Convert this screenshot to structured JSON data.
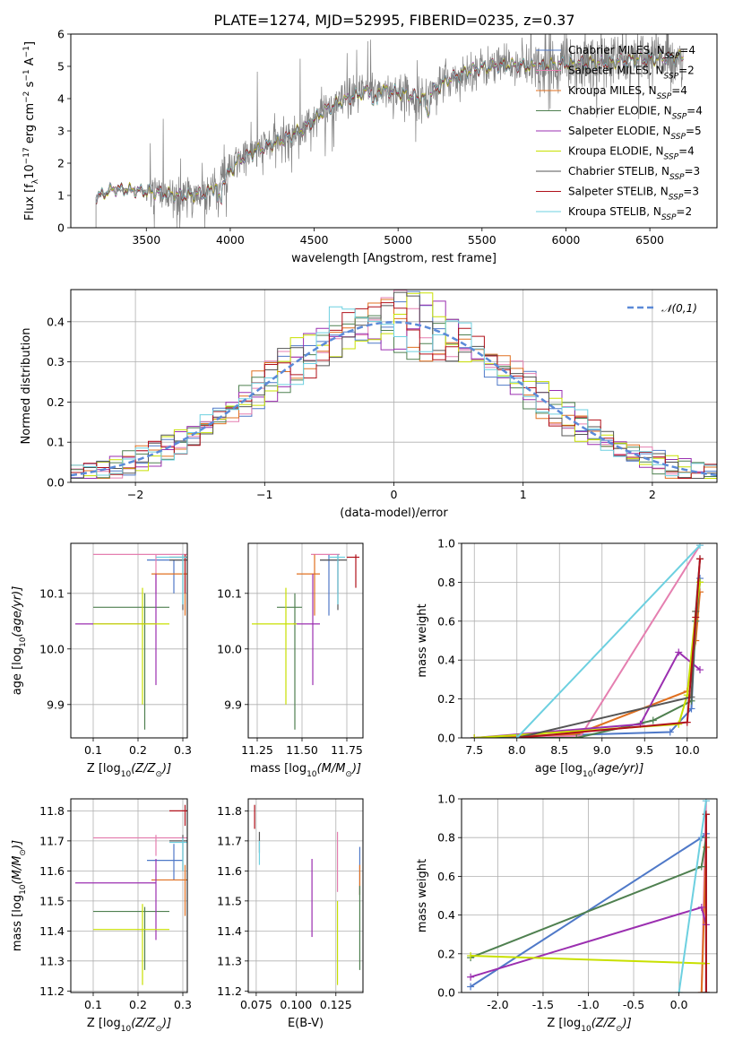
{
  "figure": {
    "title": "PLATE=1274, MJD=52995, FIBERID=0235, z=0.37"
  },
  "models": [
    {
      "name": "Chabrier MILES",
      "nssp": "4",
      "color": "#4f79c8"
    },
    {
      "name": "Salpeter MILES",
      "nssp": "2",
      "color": "#e57fb0"
    },
    {
      "name": "Kroupa MILES",
      "nssp": "4",
      "color": "#e07020"
    },
    {
      "name": "Chabrier ELODIE",
      "nssp": "4",
      "color": "#4f8050"
    },
    {
      "name": "Salpeter ELODIE",
      "nssp": "5",
      "color": "#9b2fb0"
    },
    {
      "name": "Kroupa ELODIE",
      "nssp": "4",
      "color": "#c8e000"
    },
    {
      "name": "Chabrier STELIB",
      "nssp": "3",
      "color": "#555555"
    },
    {
      "name": "Salpeter STELIB",
      "nssp": "3",
      "color": "#b0101a"
    },
    {
      "name": "Kroupa STELIB",
      "nssp": "2",
      "color": "#6dd0e0"
    }
  ],
  "chart_data": [
    {
      "id": "spectrum",
      "type": "line",
      "xlabel": "wavelength [Angstrom, rest frame]",
      "ylabel": "Flux [f_λ 10^-17 erg cm^-2 s^-1 A^-1]",
      "xlim": [
        3050,
        6900
      ],
      "ylim": [
        0,
        6
      ],
      "xticks": [
        3500,
        4000,
        4500,
        5000,
        5500,
        6000,
        6500
      ],
      "yticks": [
        0,
        1,
        2,
        3,
        4,
        5,
        6
      ],
      "legend_placement": "upper-right",
      "continuum": [
        [
          3200,
          0.95
        ],
        [
          3300,
          1.2
        ],
        [
          3450,
          1.15
        ],
        [
          3550,
          1.1
        ],
        [
          3700,
          1.0
        ],
        [
          3850,
          1.05
        ],
        [
          3950,
          1.4
        ],
        [
          4050,
          2.1
        ],
        [
          4200,
          2.5
        ],
        [
          4300,
          2.7
        ],
        [
          4450,
          3.1
        ],
        [
          4550,
          3.6
        ],
        [
          4700,
          4.0
        ],
        [
          4850,
          4.3
        ],
        [
          5000,
          4.2
        ],
        [
          5150,
          4.0
        ],
        [
          5300,
          4.6
        ],
        [
          5450,
          4.9
        ],
        [
          5550,
          5.0
        ],
        [
          5700,
          5.05
        ],
        [
          5850,
          5.0
        ],
        [
          6000,
          5.1
        ],
        [
          6200,
          5.1
        ],
        [
          6400,
          5.2
        ],
        [
          6700,
          5.3
        ]
      ]
    },
    {
      "id": "residuals",
      "type": "line",
      "xlabel": "(data-model)/error",
      "ylabel": "Normed distribution",
      "xlim": [
        -2.5,
        2.5
      ],
      "ylim": [
        0,
        0.48
      ],
      "xticks": [
        -2,
        -1,
        0,
        1,
        2
      ],
      "yticks": [
        0.0,
        0.1,
        0.2,
        0.3,
        0.4
      ],
      "grid": true,
      "legend": "𝒩(0,1)",
      "legend_placement": "upper-right",
      "gaussian": {
        "mu": 0,
        "sigma": 1,
        "color": "#5b8ad8"
      },
      "bin_width": 0.1
    },
    {
      "id": "age-vs-Z",
      "type": "scatter",
      "xlabel": "Z [log10(Z/Z⊙)]",
      "ylabel": "age [log10(age/yr)]",
      "xlim": [
        0.05,
        0.31
      ],
      "ylim": [
        9.84,
        10.19
      ],
      "xticks": [
        0.1,
        0.2,
        0.3
      ],
      "yticks": [
        9.9,
        10.0,
        10.1
      ],
      "grid": true,
      "points": [
        {
          "model": "Chabrier MILES",
          "x": 0.28,
          "y": 10.16,
          "xerr": [
            0.22,
            0.3
          ],
          "yerr": [
            10.1,
            10.16
          ]
        },
        {
          "model": "Salpeter MILES",
          "x": 0.24,
          "y": 10.17,
          "xerr": [
            0.1,
            0.31
          ],
          "yerr": [
            10.1,
            10.17
          ]
        },
        {
          "model": "Kroupa MILES",
          "x": 0.305,
          "y": 10.135,
          "xerr": [
            0.23,
            0.31
          ],
          "yerr": [
            10.06,
            10.17
          ]
        },
        {
          "model": "Chabrier ELODIE",
          "x": 0.215,
          "y": 10.075,
          "xerr": [
            0.1,
            0.27
          ],
          "yerr": [
            9.855,
            10.1
          ]
        },
        {
          "model": "Salpeter ELODIE",
          "x": 0.24,
          "y": 10.045,
          "xerr": [
            0.06,
            0.24
          ],
          "yerr": [
            9.935,
            10.135
          ]
        },
        {
          "model": "Kroupa ELODIE",
          "x": 0.21,
          "y": 10.045,
          "xerr": [
            0.1,
            0.27
          ],
          "yerr": [
            9.9,
            10.11
          ]
        },
        {
          "model": "Chabrier STELIB",
          "x": 0.3,
          "y": 10.16,
          "xerr": [
            0.27,
            0.31
          ],
          "yerr": [
            10.07,
            10.17
          ]
        },
        {
          "model": "Salpeter STELIB",
          "x": 0.305,
          "y": 10.165,
          "xerr": [
            0.27,
            0.31
          ],
          "yerr": [
            10.1,
            10.17
          ]
        },
        {
          "model": "Kroupa STELIB",
          "x": 0.3,
          "y": 10.165,
          "xerr": [
            0.24,
            0.31
          ],
          "yerr": [
            10.08,
            10.17
          ]
        }
      ]
    },
    {
      "id": "age-vs-mass",
      "type": "scatter",
      "xlabel": "mass [log10(M/M⊙)]",
      "ylabel": "",
      "xlim": [
        11.2,
        11.84
      ],
      "ylim": [
        9.84,
        10.19
      ],
      "xticks": [
        11.25,
        11.5,
        11.75
      ],
      "yticks": [
        9.9,
        10.0,
        10.1
      ],
      "grid": true,
      "points": [
        {
          "model": "Chabrier MILES",
          "x": 11.65,
          "y": 10.16,
          "xerr": [
            11.6,
            11.71
          ],
          "yerr": [
            10.06,
            10.17
          ]
        },
        {
          "model": "Salpeter MILES",
          "x": 11.7,
          "y": 10.17,
          "xerr": [
            11.55,
            11.71
          ],
          "yerr": [
            10.1,
            10.17
          ]
        },
        {
          "model": "Kroupa MILES",
          "x": 11.57,
          "y": 10.135,
          "xerr": [
            11.47,
            11.6
          ],
          "yerr": [
            10.06,
            10.17
          ]
        },
        {
          "model": "Chabrier ELODIE",
          "x": 11.46,
          "y": 10.075,
          "xerr": [
            11.36,
            11.5
          ],
          "yerr": [
            9.855,
            10.1
          ]
        },
        {
          "model": "Salpeter ELODIE",
          "x": 11.56,
          "y": 10.045,
          "xerr": [
            11.45,
            11.6
          ],
          "yerr": [
            9.935,
            10.135
          ]
        },
        {
          "model": "Kroupa ELODIE",
          "x": 11.41,
          "y": 10.045,
          "xerr": [
            11.22,
            11.47
          ],
          "yerr": [
            9.9,
            10.11
          ]
        },
        {
          "model": "Chabrier STELIB",
          "x": 11.7,
          "y": 10.16,
          "xerr": [
            11.6,
            11.75
          ],
          "yerr": [
            10.07,
            10.17
          ]
        },
        {
          "model": "Salpeter STELIB",
          "x": 11.8,
          "y": 10.165,
          "xerr": [
            11.75,
            11.82
          ],
          "yerr": [
            10.11,
            10.17
          ]
        },
        {
          "model": "Kroupa STELIB",
          "x": 11.7,
          "y": 10.165,
          "xerr": [
            11.65,
            11.74
          ],
          "yerr": [
            10.08,
            10.17
          ]
        }
      ]
    },
    {
      "id": "weight-vs-age",
      "type": "line",
      "xlabel": "age [log10(age/yr)]",
      "ylabel": "mass weight",
      "xlim": [
        7.35,
        10.35
      ],
      "ylim": [
        0,
        1
      ],
      "xticks": [
        7.5,
        8.0,
        8.5,
        9.0,
        9.5,
        10.0
      ],
      "yticks": [
        0.0,
        0.2,
        0.4,
        0.6,
        0.8,
        1.0
      ],
      "grid": true,
      "series": [
        {
          "model": "Chabrier MILES",
          "x": [
            7.5,
            9.8,
            10.05,
            10.1,
            10.15
          ],
          "y": [
            0.0,
            0.03,
            0.15,
            0.6,
            0.82
          ]
        },
        {
          "model": "Salpeter MILES",
          "x": [
            7.5,
            8.75,
            10.15
          ],
          "y": [
            0.0,
            0.01,
            0.99
          ]
        },
        {
          "model": "Kroupa MILES",
          "x": [
            7.5,
            8.7,
            10.0,
            10.1,
            10.15
          ],
          "y": [
            0.0,
            0.02,
            0.24,
            0.5,
            0.75
          ]
        },
        {
          "model": "Chabrier ELODIE",
          "x": [
            7.5,
            8.7,
            9.6,
            10.05,
            10.1,
            10.15
          ],
          "y": [
            0.0,
            0.0,
            0.09,
            0.19,
            0.6,
            0.8
          ]
        },
        {
          "model": "Salpeter ELODIE",
          "x": [
            7.5,
            9.45,
            9.9,
            10.15
          ],
          "y": [
            0.0,
            0.07,
            0.44,
            0.35
          ]
        },
        {
          "model": "Kroupa ELODIE",
          "x": [
            7.5,
            9.9,
            10.0,
            10.1,
            10.15
          ],
          "y": [
            0.0,
            0.07,
            0.22,
            0.65,
            0.8
          ]
        },
        {
          "model": "Chabrier STELIB",
          "x": [
            8.0,
            10.05,
            10.1,
            10.15
          ],
          "y": [
            0.0,
            0.21,
            0.65,
            0.92
          ]
        },
        {
          "model": "Salpeter STELIB",
          "x": [
            8.0,
            10.0,
            10.1,
            10.15
          ],
          "y": [
            0.0,
            0.08,
            0.62,
            0.92
          ]
        },
        {
          "model": "Kroupa STELIB",
          "x": [
            8.0,
            10.15
          ],
          "y": [
            0.0,
            0.99
          ]
        }
      ]
    },
    {
      "id": "mass-vs-Z",
      "type": "scatter",
      "xlabel": "Z [log10(Z/Z⊙)]",
      "ylabel": "mass [log10(M/M⊙)]",
      "xlim": [
        0.05,
        0.31
      ],
      "ylim": [
        11.195,
        11.84
      ],
      "xticks": [
        0.1,
        0.2,
        0.3
      ],
      "yticks": [
        11.2,
        11.3,
        11.4,
        11.5,
        11.6,
        11.7,
        11.8
      ],
      "grid": true,
      "points": [
        {
          "model": "Chabrier MILES",
          "x": 0.28,
          "y": 11.635,
          "xerr": [
            0.22,
            0.3
          ],
          "yerr": [
            11.57,
            11.69
          ]
        },
        {
          "model": "Salpeter MILES",
          "x": 0.24,
          "y": 11.71,
          "xerr": [
            0.1,
            0.31
          ],
          "yerr": [
            11.65,
            11.72
          ]
        },
        {
          "model": "Kroupa MILES",
          "x": 0.305,
          "y": 11.57,
          "xerr": [
            0.23,
            0.31
          ],
          "yerr": [
            11.45,
            11.62
          ]
        },
        {
          "model": "Chabrier ELODIE",
          "x": 0.215,
          "y": 11.465,
          "xerr": [
            0.1,
            0.27
          ],
          "yerr": [
            11.27,
            11.48
          ]
        },
        {
          "model": "Salpeter ELODIE",
          "x": 0.24,
          "y": 11.56,
          "xerr": [
            0.06,
            0.24
          ],
          "yerr": [
            11.37,
            11.64
          ]
        },
        {
          "model": "Kroupa ELODIE",
          "x": 0.21,
          "y": 11.405,
          "xerr": [
            0.1,
            0.27
          ],
          "yerr": [
            11.22,
            11.49
          ]
        },
        {
          "model": "Chabrier STELIB",
          "x": 0.3,
          "y": 11.7,
          "xerr": [
            0.27,
            0.31
          ],
          "yerr": [
            11.6,
            11.72
          ]
        },
        {
          "model": "Salpeter STELIB",
          "x": 0.305,
          "y": 11.8,
          "xerr": [
            0.27,
            0.31
          ],
          "yerr": [
            11.75,
            11.82
          ]
        },
        {
          "model": "Kroupa STELIB",
          "x": 0.3,
          "y": 11.695,
          "xerr": [
            0.27,
            0.31
          ],
          "yerr": [
            11.6,
            11.71
          ]
        }
      ]
    },
    {
      "id": "mass-vs-ebv",
      "type": "scatter",
      "xlabel": "E(B-V)",
      "ylabel": "",
      "xlim": [
        0.07,
        0.142
      ],
      "ylim": [
        11.195,
        11.84
      ],
      "xticks": [
        0.075,
        0.1,
        0.125
      ],
      "yticks": [
        11.2,
        11.3,
        11.4,
        11.5,
        11.6,
        11.7,
        11.8
      ],
      "grid": true,
      "points": [
        {
          "model": "Chabrier MILES",
          "x": 0.14,
          "y": 11.6,
          "xerr": [
            0.14,
            0.14
          ],
          "yerr": [
            11.52,
            11.68
          ]
        },
        {
          "model": "Salpeter MILES",
          "x": 0.126,
          "y": 11.63,
          "xerr": [
            0.126,
            0.126
          ],
          "yerr": [
            11.53,
            11.73
          ]
        },
        {
          "model": "Kroupa MILES",
          "x": 0.14,
          "y": 11.58,
          "xerr": [
            0.14,
            0.14
          ],
          "yerr": [
            11.52,
            11.62
          ]
        },
        {
          "model": "Chabrier ELODIE",
          "x": 0.14,
          "y": 11.41,
          "xerr": [
            0.14,
            0.14
          ],
          "yerr": [
            11.27,
            11.55
          ]
        },
        {
          "model": "Salpeter ELODIE",
          "x": 0.11,
          "y": 11.51,
          "xerr": [
            0.11,
            0.11
          ],
          "yerr": [
            11.38,
            11.64
          ]
        },
        {
          "model": "Kroupa ELODIE",
          "x": 0.126,
          "y": 11.36,
          "xerr": [
            0.126,
            0.126
          ],
          "yerr": [
            11.22,
            11.5
          ]
        },
        {
          "model": "Chabrier STELIB",
          "x": 0.077,
          "y": 11.7,
          "xerr": [
            0.077,
            0.077
          ],
          "yerr": [
            11.66,
            11.73
          ]
        },
        {
          "model": "Salpeter STELIB",
          "x": 0.074,
          "y": 11.78,
          "xerr": [
            0.074,
            0.074
          ],
          "yerr": [
            11.74,
            11.82
          ]
        },
        {
          "model": "Kroupa STELIB",
          "x": 0.077,
          "y": 11.66,
          "xerr": [
            0.077,
            0.077
          ],
          "yerr": [
            11.62,
            11.7
          ]
        }
      ]
    },
    {
      "id": "weight-vs-Z",
      "type": "line",
      "xlabel": "Z [log10(Z/Z⊙)]",
      "ylabel": "mass weight",
      "xlim": [
        -2.4,
        0.42
      ],
      "ylim": [
        0,
        1
      ],
      "xticks": [
        -2.0,
        -1.5,
        -1.0,
        -0.5,
        0.0
      ],
      "yticks": [
        0.0,
        0.2,
        0.4,
        0.6,
        0.8,
        1.0
      ],
      "grid": true,
      "series": [
        {
          "model": "Chabrier MILES",
          "x": [
            -2.3,
            0.25,
            0.3
          ],
          "y": [
            0.03,
            0.8,
            0.82
          ]
        },
        {
          "model": "Salpeter MILES",
          "x": [
            0.25,
            0.3
          ],
          "y": [
            0.0,
            0.99
          ]
        },
        {
          "model": "Kroupa MILES",
          "x": [
            0.25,
            0.3
          ],
          "y": [
            0.0,
            0.75
          ]
        },
        {
          "model": "Chabrier ELODIE",
          "x": [
            -2.3,
            0.25,
            0.3
          ],
          "y": [
            0.18,
            0.65,
            0.8
          ]
        },
        {
          "model": "Salpeter ELODIE",
          "x": [
            -2.3,
            0.25,
            0.3
          ],
          "y": [
            0.08,
            0.44,
            0.35
          ]
        },
        {
          "model": "Kroupa ELODIE",
          "x": [
            -2.3,
            0.3
          ],
          "y": [
            0.19,
            0.15
          ]
        },
        {
          "model": "Chabrier STELIB",
          "x": [
            0.3,
            0.3
          ],
          "y": [
            0.0,
            0.92
          ]
        },
        {
          "model": "Salpeter STELIB",
          "x": [
            0.3,
            0.3
          ],
          "y": [
            0.0,
            0.92
          ]
        },
        {
          "model": "Kroupa STELIB",
          "x": [
            0.0,
            0.3
          ],
          "y": [
            0.0,
            0.99
          ]
        }
      ]
    }
  ]
}
